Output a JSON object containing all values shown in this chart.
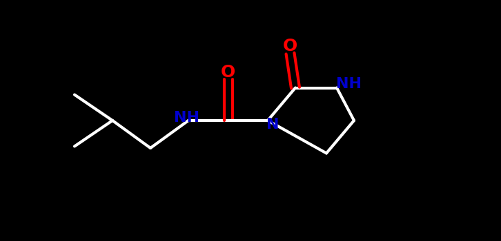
{
  "background_color": "#000000",
  "bond_color": "#ffffff",
  "nitrogen_color": "#0000cc",
  "oxygen_color": "#ff0000",
  "bond_width": 3.0,
  "font_size_atoms": 16,
  "figsize": [
    7.26,
    3.5
  ],
  "dpi": 100,
  "xlim": [
    0,
    12
  ],
  "ylim": [
    0,
    7
  ]
}
